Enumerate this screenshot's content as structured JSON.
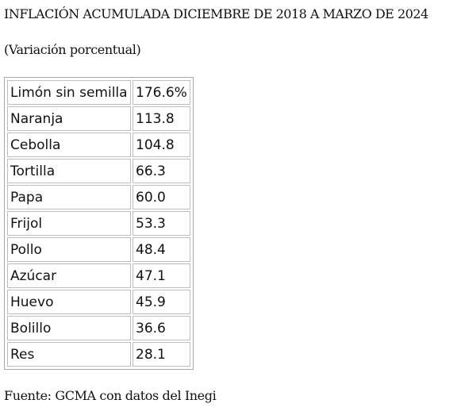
{
  "title": "INFLACIÓN ACUMULADA DICIEMBRE DE 2018 A MARZO DE 2024",
  "subtitle": "(Variación porcentual)",
  "rows": [
    {
      "product": "Limón sin semilla",
      "value": "176.6%"
    },
    {
      "product": "Naranja",
      "value": "113.8"
    },
    {
      "product": "Cebolla",
      "value": "104.8"
    },
    {
      "product": "Tortilla",
      "value": "66.3"
    },
    {
      "product": "Papa",
      "value": "60.0"
    },
    {
      "product": "Frijol",
      "value": "53.3"
    },
    {
      "product": "Pollo",
      "value": "48.4"
    },
    {
      "product": "Azúcar",
      "value": "47.1"
    },
    {
      "product": "Huevo",
      "value": "45.9"
    },
    {
      "product": "Bolillo",
      "value": "36.6"
    },
    {
      "product": "Res",
      "value": "28.1"
    }
  ],
  "source": "Fuente: GCMA con datos del Inegi"
}
